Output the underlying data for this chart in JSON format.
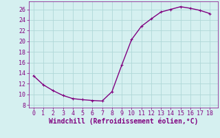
{
  "x": [
    0,
    1,
    2,
    3,
    4,
    5,
    6,
    7,
    8,
    9,
    10,
    11,
    12,
    13,
    14,
    15,
    16,
    17,
    18
  ],
  "y": [
    13.5,
    11.8,
    10.7,
    9.8,
    9.2,
    9.0,
    8.85,
    8.75,
    10.5,
    15.5,
    20.3,
    22.8,
    24.2,
    25.5,
    26.0,
    26.5,
    26.2,
    25.8,
    25.2
  ],
  "xlim": [
    -0.5,
    18.8
  ],
  "ylim": [
    7.5,
    27.5
  ],
  "xticks": [
    0,
    1,
    2,
    3,
    4,
    5,
    6,
    7,
    8,
    9,
    10,
    11,
    12,
    13,
    14,
    15,
    16,
    17,
    18
  ],
  "yticks": [
    8,
    10,
    12,
    14,
    16,
    18,
    20,
    22,
    24,
    26
  ],
  "xlabel": "Windchill (Refroidissement éolien,°C)",
  "line_color": "#800080",
  "marker": "+",
  "bg_color": "#d5f0f0",
  "grid_color": "#afd8d8",
  "xlabel_color": "#800080",
  "tick_color": "#800080",
  "tick_labelsize": 6,
  "xlabel_fontsize": 7,
  "linewidth": 1.0,
  "markersize": 3,
  "markeredgewidth": 0.8
}
